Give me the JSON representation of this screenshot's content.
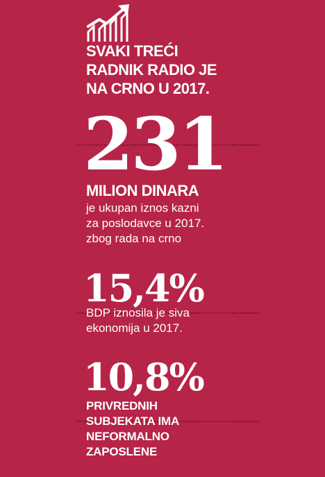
{
  "headline": {
    "lines": [
      "SVAKI TREĆI",
      "RADNIK RADIO JE",
      "NA CRNO U 2017."
    ]
  },
  "icon": "trending-up-chart-icon",
  "stat1": {
    "value": "231",
    "unit": "MILION DINARA",
    "description": [
      "je ukupan iznos kazni",
      "za poslodavce u 2017.",
      "zbog rada na crno"
    ]
  },
  "stat2": {
    "value": "15,4%",
    "description": [
      "BDP iznosila je siva",
      "ekonomija u 2017."
    ]
  },
  "stat3": {
    "value": "10,8%",
    "description": [
      "PRIVREDNIH",
      "SUBJEKATA IMA",
      "NEFORMALNO",
      "ZAPOSLENE"
    ]
  },
  "colors": {
    "background": "#b62448",
    "text": "#ffffff"
  }
}
